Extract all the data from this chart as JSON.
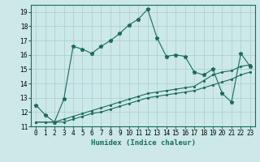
{
  "xlabel": "Humidex (Indice chaleur)",
  "ylabel": "",
  "bg_color": "#cce8e8",
  "line_color": "#1a6b5a",
  "grid_color": "#aacece",
  "x_values": [
    0,
    1,
    2,
    3,
    4,
    5,
    6,
    7,
    8,
    9,
    10,
    11,
    12,
    13,
    14,
    15,
    16,
    17,
    18,
    19,
    20,
    21,
    22,
    23
  ],
  "series1": [
    12.5,
    11.8,
    11.3,
    12.9,
    16.6,
    16.4,
    16.1,
    16.6,
    17.0,
    17.5,
    18.1,
    18.5,
    19.2,
    17.2,
    15.9,
    16.0,
    15.9,
    14.8,
    14.6,
    15.0,
    13.3,
    12.7,
    16.1,
    15.2
  ],
  "series2": [
    11.3,
    11.3,
    11.3,
    11.5,
    11.7,
    11.9,
    12.1,
    12.3,
    12.5,
    12.7,
    12.9,
    13.1,
    13.3,
    13.4,
    13.5,
    13.6,
    13.7,
    13.8,
    14.2,
    14.6,
    14.8,
    14.9,
    15.2,
    15.3
  ],
  "series3": [
    11.3,
    11.3,
    11.3,
    11.3,
    11.5,
    11.7,
    11.9,
    12.0,
    12.2,
    12.4,
    12.6,
    12.8,
    13.0,
    13.1,
    13.2,
    13.3,
    13.4,
    13.5,
    13.7,
    13.9,
    14.1,
    14.3,
    14.6,
    14.8
  ],
  "ylim": [
    11,
    19.5
  ],
  "yticks": [
    11,
    12,
    13,
    14,
    15,
    16,
    17,
    18,
    19
  ],
  "xlim": [
    -0.5,
    23.5
  ],
  "tick_fontsize": 5.5,
  "label_fontsize": 6.5
}
